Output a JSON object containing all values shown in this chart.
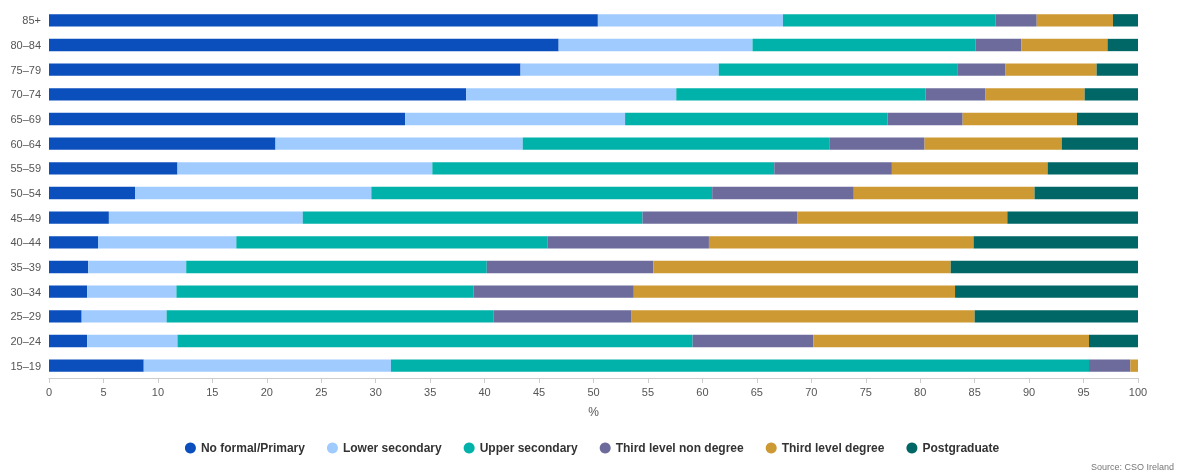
{
  "chart_data": {
    "type": "bar",
    "orientation": "horizontal",
    "stacked": true,
    "xlabel": "%",
    "legend": "bottom",
    "grid": false,
    "categories": [
      "85+",
      "80–84",
      "75–79",
      "70–74",
      "65–69",
      "60–64",
      "55–59",
      "50–54",
      "45–49",
      "40–44",
      "35–39",
      "30–34",
      "25–29",
      "20–24",
      "15–19"
    ],
    "xlim": [
      0,
      100
    ],
    "xticks": [
      0,
      5,
      10,
      15,
      20,
      25,
      30,
      35,
      40,
      45,
      50,
      55,
      60,
      65,
      70,
      75,
      80,
      85,
      90,
      95,
      100
    ],
    "series": [
      {
        "name": "No formal/Primary",
        "color": "#0b4fbd",
        "values": [
          50.4,
          46.8,
          43.3,
          38.3,
          32.7,
          20.8,
          11.8,
          7.9,
          5.5,
          4.5,
          3.6,
          3.5,
          3.0,
          3.5,
          8.7
        ]
      },
      {
        "name": "Lower secondary",
        "color": "#a0cbff",
        "values": [
          17.0,
          17.8,
          18.2,
          19.3,
          20.2,
          22.7,
          23.4,
          21.7,
          17.8,
          12.7,
          9.0,
          8.2,
          7.8,
          8.3,
          22.7
        ]
      },
      {
        "name": "Upper secondary",
        "color": "#00b2a9",
        "values": [
          19.5,
          20.5,
          21.9,
          22.9,
          24.1,
          28.2,
          31.4,
          31.3,
          31.2,
          28.6,
          27.6,
          27.3,
          30.0,
          47.3,
          64.1
        ]
      },
      {
        "name": "Third level non degree",
        "color": "#6c6b9c",
        "values": [
          3.8,
          4.2,
          4.4,
          5.5,
          6.9,
          8.7,
          10.8,
          13.0,
          14.2,
          14.8,
          15.3,
          14.7,
          12.7,
          11.1,
          3.8
        ]
      },
      {
        "name": "Third level degree",
        "color": "#cc9933",
        "values": [
          7.0,
          7.9,
          8.4,
          9.1,
          10.5,
          12.6,
          14.3,
          16.6,
          19.3,
          24.3,
          27.3,
          29.5,
          31.5,
          25.3,
          0.7
        ]
      },
      {
        "name": "Postgraduate",
        "color": "#006666",
        "values": [
          2.3,
          2.8,
          3.8,
          4.9,
          5.6,
          7.0,
          8.3,
          9.5,
          12.0,
          15.1,
          17.2,
          16.8,
          15.0,
          4.5,
          0
        ]
      }
    ],
    "annotations": [
      "Source: CSO Ireland"
    ]
  }
}
